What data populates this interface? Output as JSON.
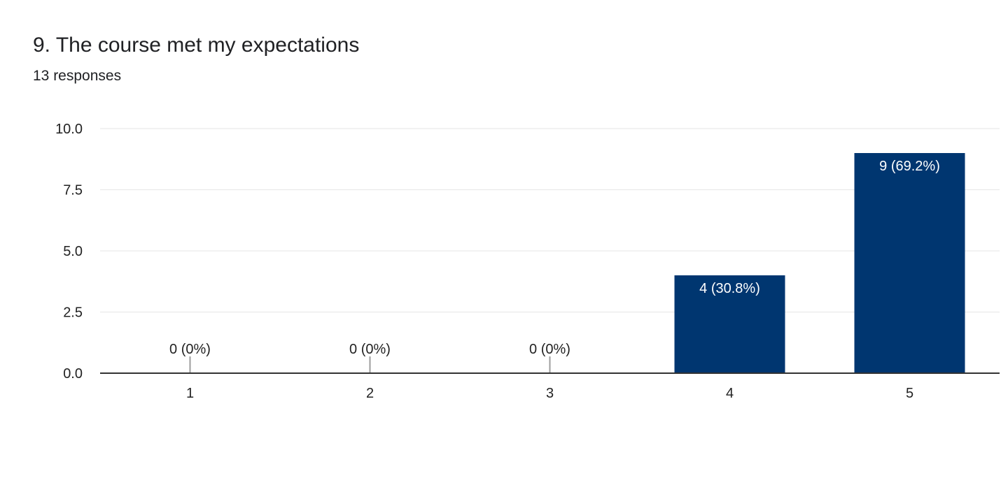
{
  "question": {
    "title": "9. The course met my expectations",
    "responses": "13 responses"
  },
  "colors": {
    "bar": "#003670",
    "grid": "#e6e6e6",
    "axis": "#333333",
    "label_outside": "#222222",
    "label_inside": "#ffffff"
  },
  "chart_data": {
    "type": "bar",
    "categories": [
      "1",
      "2",
      "3",
      "4",
      "5"
    ],
    "values": [
      0,
      0,
      0,
      4,
      9
    ],
    "data_labels": [
      "0 (0%)",
      "0 (0%)",
      "0 (0%)",
      "4 (30.8%)",
      "9 (69.2%)"
    ],
    "y_ticks": [
      "0.0",
      "2.5",
      "5.0",
      "7.5",
      "10.0"
    ],
    "ylim": [
      0,
      10
    ],
    "grid": true,
    "legend": "none"
  }
}
